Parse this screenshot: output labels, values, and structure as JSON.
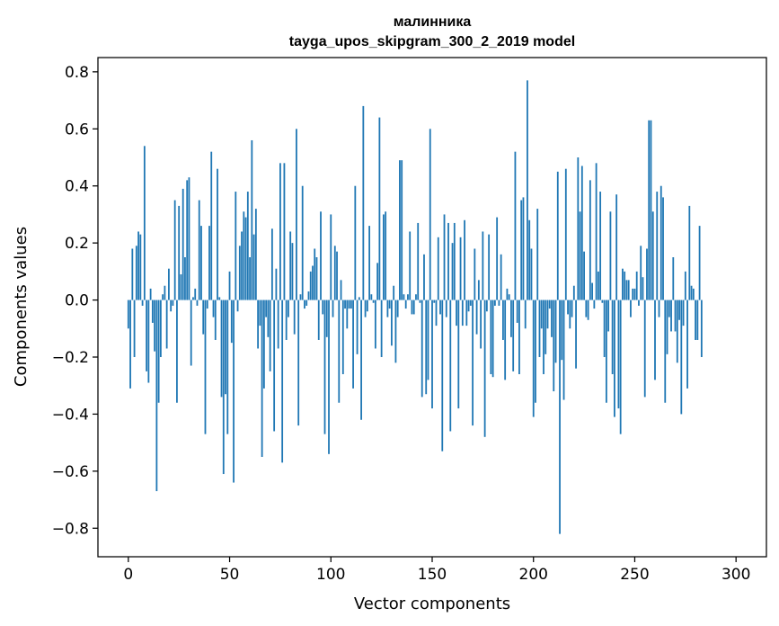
{
  "chart_data": {
    "type": "bar",
    "title": "малинника",
    "subtitle": "tayga_upos_skipgram_300_2_2019 model",
    "xlabel": "Vector components",
    "ylabel": "Components values",
    "xlim": [
      -15,
      315
    ],
    "ylim": [
      -0.9,
      0.85
    ],
    "xticks": [
      0,
      50,
      100,
      150,
      200,
      250,
      300
    ],
    "xtick_labels": [
      "0",
      "50",
      "100",
      "150",
      "200",
      "250",
      "300"
    ],
    "yticks": [
      -0.8,
      -0.6,
      -0.4,
      -0.2,
      0.0,
      0.2,
      0.4,
      0.6,
      0.8
    ],
    "ytick_labels": [
      "−0.8",
      "−0.6",
      "−0.4",
      "−0.2",
      "0.0",
      "0.2",
      "0.4",
      "0.6",
      "0.8"
    ],
    "bar_color": "#1f77b4",
    "grid": false,
    "values": [
      -0.1,
      -0.31,
      0.18,
      -0.2,
      0.19,
      0.24,
      0.23,
      -0.02,
      0.54,
      -0.25,
      -0.29,
      0.04,
      -0.08,
      -0.18,
      -0.67,
      -0.36,
      -0.2,
      0.02,
      0.05,
      -0.17,
      0.11,
      -0.04,
      -0.02,
      0.35,
      -0.36,
      0.33,
      0.09,
      0.39,
      0.15,
      0.42,
      0.43,
      -0.23,
      0.01,
      0.04,
      -0.02,
      0.35,
      0.26,
      -0.12,
      -0.47,
      -0.03,
      0.26,
      0.52,
      -0.06,
      -0.14,
      0.46,
      0.01,
      -0.34,
      -0.61,
      -0.33,
      -0.47,
      0.1,
      -0.15,
      -0.64,
      0.38,
      -0.04,
      0.19,
      0.24,
      0.31,
      0.29,
      0.38,
      0.15,
      0.56,
      0.23,
      0.32,
      -0.17,
      -0.09,
      -0.55,
      -0.31,
      -0.06,
      -0.13,
      -0.25,
      0.25,
      -0.46,
      0.11,
      -0.17,
      0.48,
      -0.57,
      0.48,
      -0.14,
      -0.06,
      0.24,
      0.2,
      -0.12,
      0.6,
      -0.44,
      0.02,
      0.4,
      -0.03,
      -0.02,
      0.03,
      0.1,
      0.12,
      0.18,
      0.15,
      -0.14,
      0.31,
      -0.05,
      -0.47,
      -0.13,
      -0.54,
      0.3,
      -0.06,
      0.19,
      0.17,
      -0.36,
      0.07,
      -0.26,
      -0.03,
      -0.1,
      -0.03,
      -0.03,
      -0.31,
      0.4,
      -0.19,
      0.01,
      -0.42,
      0.68,
      -0.06,
      -0.04,
      0.26,
      0.02,
      -0.01,
      -0.17,
      0.13,
      0.64,
      -0.2,
      0.3,
      0.31,
      -0.06,
      -0.03,
      -0.16,
      0.05,
      -0.22,
      -0.06,
      0.49,
      0.49,
      0.02,
      -0.03,
      0.02,
      0.24,
      -0.05,
      -0.05,
      0.02,
      0.27,
      -0.01,
      -0.34,
      0.16,
      -0.33,
      -0.28,
      0.6,
      -0.38,
      -0.01,
      -0.09,
      0.22,
      -0.05,
      -0.53,
      0.3,
      -0.06,
      0.27,
      -0.46,
      0.2,
      0.27,
      -0.09,
      -0.38,
      0.22,
      -0.09,
      0.28,
      -0.09,
      -0.04,
      -0.02,
      -0.44,
      0.18,
      -0.12,
      0.07,
      -0.17,
      0.24,
      -0.48,
      -0.04,
      0.23,
      -0.26,
      -0.27,
      -0.02,
      0.29,
      -0.02,
      0.16,
      -0.14,
      -0.28,
      0.04,
      0.02,
      -0.13,
      -0.25,
      0.52,
      -0.08,
      -0.26,
      0.35,
      0.36,
      -0.1,
      0.77,
      0.28,
      0.18,
      -0.41,
      -0.36,
      0.32,
      -0.2,
      -0.1,
      -0.26,
      -0.19,
      -0.1,
      -0.03,
      -0.13,
      -0.32,
      -0.22,
      0.45,
      -0.82,
      -0.21,
      -0.35,
      0.46,
      -0.05,
      -0.1,
      -0.06,
      0.05,
      -0.24,
      0.5,
      0.31,
      0.47,
      0.17,
      -0.06,
      -0.07,
      0.42,
      0.06,
      -0.03,
      0.48,
      0.1,
      0.38,
      -0.01,
      -0.2,
      -0.36,
      -0.11,
      0.31,
      -0.26,
      -0.41,
      0.37,
      -0.38,
      -0.47,
      0.11,
      0.1,
      0.07,
      0.07,
      -0.06,
      0.04,
      0.04,
      0.1,
      -0.02,
      0.19,
      0.08,
      -0.34,
      0.18,
      0.63,
      0.63,
      0.31,
      -0.28,
      0.38,
      -0.06,
      0.4,
      0.36,
      -0.36,
      -0.19,
      -0.06,
      -0.11,
      0.15,
      -0.11,
      -0.22,
      -0.07,
      -0.4,
      -0.09,
      0.1,
      -0.31,
      0.33,
      0.05,
      0.04,
      -0.14,
      -0.14,
      0.26,
      -0.2
    ]
  }
}
